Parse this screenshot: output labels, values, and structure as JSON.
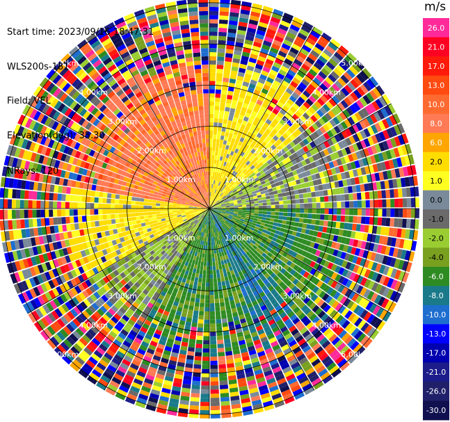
{
  "header": {
    "start_time": "Start time: 2023/09/16 18:47:31",
    "instrument": "WLS200s-181",
    "field": "Field: VEL",
    "elevation": "Elevation(deg): 35.30",
    "nrays": "NRays: 120"
  },
  "colorbar": {
    "unit": "m/s",
    "ticks": [
      "26.0",
      "21.0",
      "17.0",
      "13.0",
      "10.0",
      "8.0",
      "6.0",
      "2.0",
      "1.0",
      "0.0",
      "-1.0",
      "-2.0",
      "-4.0",
      "-6.0",
      "-8.0",
      "-10.0",
      "-13.0",
      "-17.0",
      "-21.0",
      "-26.0",
      "-30.0"
    ],
    "colors": [
      "#ff2a9a",
      "#ff0022",
      "#ff1a0a",
      "#ff4a10",
      "#ff6a30",
      "#ff7a55",
      "#ffa500",
      "#ffdd00",
      "#ffff22",
      "#7a8a9a",
      "#6a6a6a",
      "#9acd32",
      "#7aa020",
      "#2e8b22",
      "#1a7a8a",
      "#1e6ed0",
      "#0000ff",
      "#0000b0",
      "#1c1c8a",
      "#20206a",
      "#101050"
    ],
    "text_colors": [
      "#ffffff",
      "#ffffff",
      "#ffffff",
      "#ffffff",
      "#ffffff",
      "#ffffff",
      "#ffffff",
      "#000000",
      "#000000",
      "#000000",
      "#000000",
      "#000000",
      "#000000",
      "#ffffff",
      "#ffffff",
      "#ffffff",
      "#ffffff",
      "#ffffff",
      "#ffffff",
      "#ffffff",
      "#ffffff"
    ]
  },
  "chart_data": {
    "type": "heatmap",
    "projection": "polar PPI",
    "field": "VEL",
    "nrays": 120,
    "range_rings_km": [
      1.0,
      2.0,
      3.0,
      4.0,
      5.0
    ],
    "ring_labels": [
      "1.00km",
      "2.00km",
      "3.00km",
      "4.00km",
      "5.00km"
    ],
    "max_range_km": 5.1,
    "spoke_angles_deg": [
      0,
      30,
      60,
      90,
      120,
      150,
      180,
      210,
      240,
      270,
      300,
      330
    ],
    "velocity_sectors": [
      {
        "azimuth_deg": [
          280,
          360
        ],
        "velocity_ms": 8,
        "note": "receding, orange-red, northwest"
      },
      {
        "azimuth_deg": [
          0,
          50
        ],
        "velocity_ms": 2,
        "note": "yellow, north"
      },
      {
        "azimuth_deg": [
          50,
          90
        ],
        "velocity_ms": -1,
        "note": "grey/olive, northeast"
      },
      {
        "azimuth_deg": [
          90,
          140
        ],
        "velocity_ms": -6,
        "note": "green, east"
      },
      {
        "azimuth_deg": [
          140,
          160
        ],
        "velocity_ms": -8,
        "note": "blue, southeast"
      },
      {
        "azimuth_deg": [
          160,
          210
        ],
        "velocity_ms": -6,
        "note": "green, south"
      },
      {
        "azimuth_deg": [
          210,
          240
        ],
        "velocity_ms": -2,
        "note": "olive, southwest"
      },
      {
        "azimuth_deg": [
          240,
          280
        ],
        "velocity_ms": 2,
        "note": "yellow, west"
      }
    ],
    "noise_beyond_km": 3.3
  }
}
